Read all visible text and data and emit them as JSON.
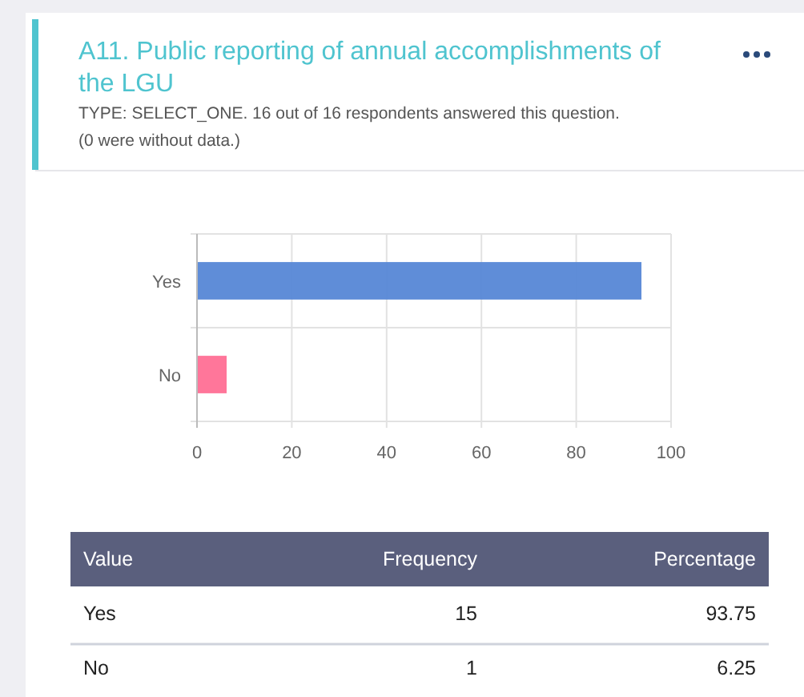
{
  "chart_data": [
    {
      "type": "bar",
      "orientation": "horizontal",
      "title": "A11. Public reporting of annual accomplishments of the LGU",
      "subtitle": "TYPE: SELECT_ONE. 16 out of 16 respondents answered this question. (0 were without data.)",
      "categories": [
        "Yes",
        "No"
      ],
      "values": [
        93.75,
        6.25
      ],
      "colors": [
        "#5687d6",
        "#ff6f95"
      ],
      "xlim": [
        0,
        100
      ],
      "xticks": [
        0,
        20,
        40,
        60,
        80,
        100
      ],
      "grid": true
    },
    {
      "type": "other",
      "xlabel": "Value",
      "data_labels": true,
      "categories": [
        "Yes",
        "No"
      ],
      "series": [
        {
          "name": "Frequency",
          "values": [
            15,
            1
          ]
        },
        {
          "name": "Percentage",
          "values": [
            93.75,
            6.25
          ]
        }
      ]
    }
  ]
}
